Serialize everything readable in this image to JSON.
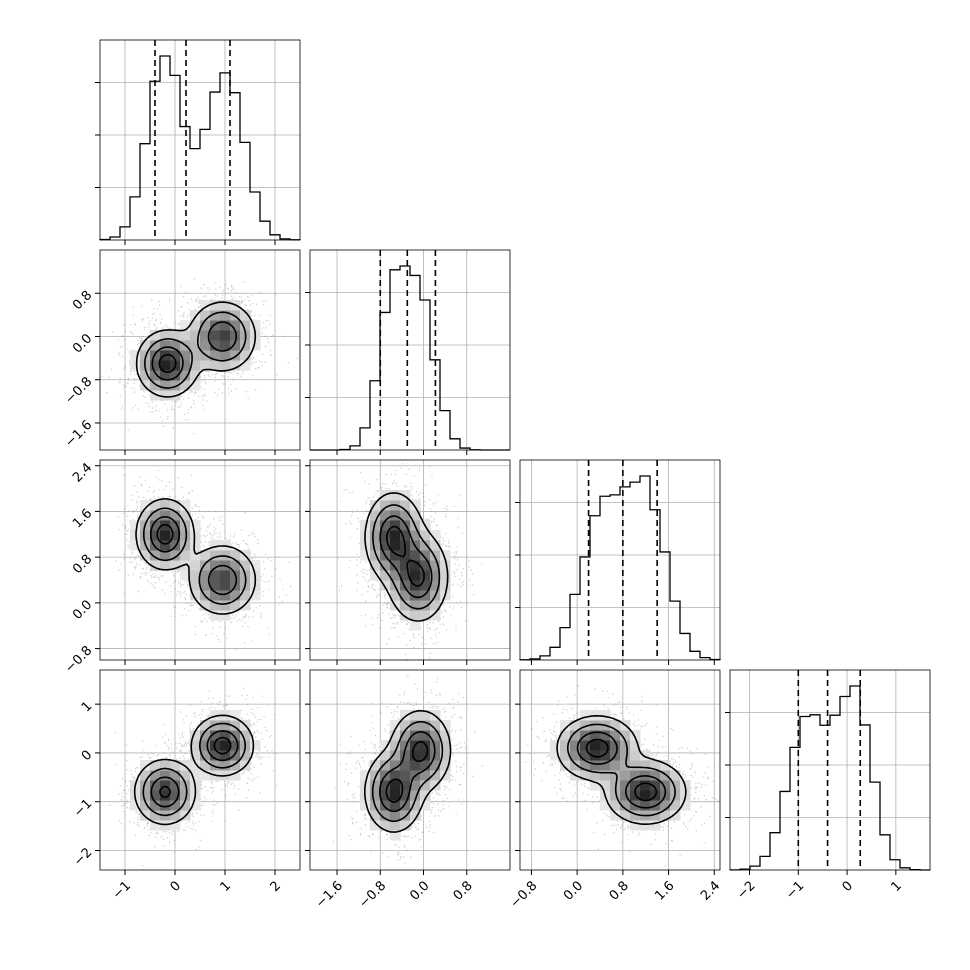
{
  "chart_data": {
    "type": "corner",
    "parameters": 4,
    "grid": true,
    "axes": {
      "p1": {
        "range": [
          -1.5,
          2.5
        ],
        "ticks": [
          -1,
          0,
          1,
          2
        ],
        "tick_labels": [
          "−1",
          "0",
          "1",
          "2"
        ]
      },
      "p2": {
        "range": [
          -2.1,
          1.6
        ],
        "ticks": [
          -1.6,
          -0.8,
          0.0,
          0.8
        ],
        "tick_labels": [
          "−1.6",
          "−0.8",
          "0.0",
          "0.8"
        ]
      },
      "p3": {
        "range": [
          -1.0,
          2.5
        ],
        "ticks": [
          -0.8,
          0.0,
          0.8,
          1.6,
          2.4
        ],
        "tick_labels": [
          "−0.8",
          "0.0",
          "0.8",
          "1.6",
          "2.4"
        ]
      },
      "p4": {
        "range": [
          -2.4,
          1.7
        ],
        "ticks": [
          -2,
          -1,
          0,
          1
        ],
        "tick_labels": [
          "−2",
          "−1",
          "0",
          "1"
        ]
      }
    },
    "marginals": [
      {
        "param": "p1",
        "quantiles": [
          -0.4,
          0.22,
          1.1
        ],
        "components": [
          {
            "mu": -0.2,
            "sigma": 0.35,
            "w": 0.5
          },
          {
            "mu": 1.0,
            "sigma": 0.38,
            "w": 0.5
          }
        ]
      },
      {
        "param": "p2",
        "quantiles": [
          -0.8,
          -0.3,
          0.22
        ],
        "components": [
          {
            "mu": -0.57,
            "sigma": 0.26,
            "w": 0.5
          },
          {
            "mu": -0.05,
            "sigma": 0.28,
            "w": 0.5
          }
        ]
      },
      {
        "param": "p3",
        "quantiles": [
          0.2,
          0.8,
          1.4
        ],
        "components": [
          {
            "mu": 0.45,
            "sigma": 0.38,
            "w": 0.5
          },
          {
            "mu": 1.22,
            "sigma": 0.35,
            "w": 0.5
          }
        ]
      },
      {
        "param": "p4",
        "quantiles": [
          -1.0,
          -0.4,
          0.27
        ],
        "components": [
          {
            "mu": -0.8,
            "sigma": 0.4,
            "w": 0.5
          },
          {
            "mu": 0.15,
            "sigma": 0.35,
            "w": 0.5
          }
        ]
      }
    ],
    "joints": [
      {
        "x": "p1",
        "y": "p2",
        "modes": [
          {
            "cx": -0.15,
            "cy": -0.5,
            "sx": 0.3,
            "sy": 0.3,
            "w": 0.5
          },
          {
            "cx": 0.95,
            "cy": 0.0,
            "sx": 0.33,
            "sy": 0.32,
            "w": 0.5
          }
        ]
      },
      {
        "x": "p1",
        "y": "p3",
        "modes": [
          {
            "cx": -0.2,
            "cy": 1.2,
            "sx": 0.28,
            "sy": 0.3,
            "w": 0.5
          },
          {
            "cx": 0.95,
            "cy": 0.4,
            "sx": 0.33,
            "sy": 0.3,
            "w": 0.5
          }
        ]
      },
      {
        "x": "p1",
        "y": "p4",
        "modes": [
          {
            "cx": -0.2,
            "cy": -0.8,
            "sx": 0.3,
            "sy": 0.33,
            "w": 0.5
          },
          {
            "cx": 0.95,
            "cy": 0.15,
            "sx": 0.3,
            "sy": 0.3,
            "w": 0.5
          }
        ]
      },
      {
        "x": "p2",
        "y": "p3",
        "modes": [
          {
            "cx": -0.55,
            "cy": 1.15,
            "sx": 0.26,
            "sy": 0.38,
            "w": 0.5
          },
          {
            "cx": -0.1,
            "cy": 0.45,
            "sx": 0.27,
            "sy": 0.38,
            "w": 0.5
          }
        ]
      },
      {
        "x": "p2",
        "y": "p4",
        "modes": [
          {
            "cx": -0.55,
            "cy": -0.8,
            "sx": 0.26,
            "sy": 0.4,
            "w": 0.5
          },
          {
            "cx": -0.05,
            "cy": 0.05,
            "sx": 0.27,
            "sy": 0.4,
            "w": 0.5
          }
        ]
      },
      {
        "x": "p3",
        "y": "p4",
        "modes": [
          {
            "cx": 0.35,
            "cy": 0.1,
            "sx": 0.34,
            "sy": 0.32,
            "w": 0.5
          },
          {
            "cx": 1.2,
            "cy": -0.8,
            "sx": 0.34,
            "sy": 0.32,
            "w": 0.5
          }
        ]
      }
    ],
    "bottom_axes": [
      "p1",
      "p2",
      "p3",
      "p4"
    ],
    "left_axes": [
      "p2",
      "p3",
      "p4"
    ]
  }
}
